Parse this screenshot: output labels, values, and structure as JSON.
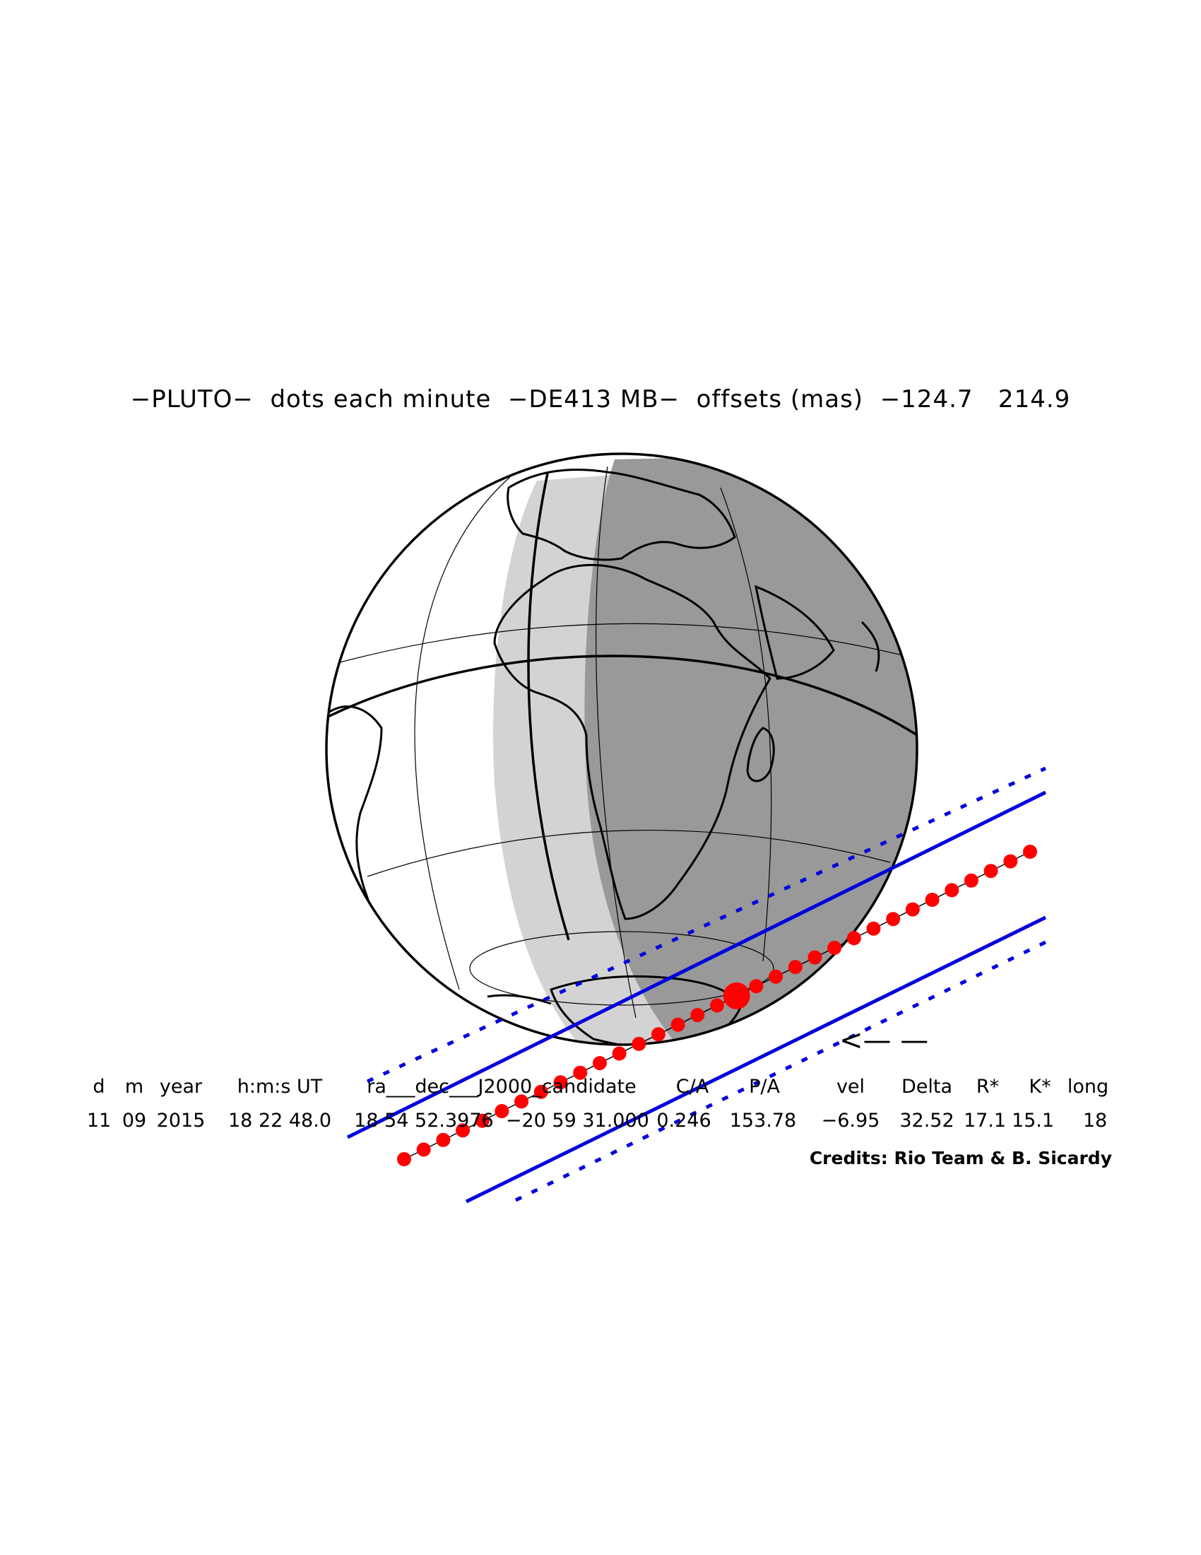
{
  "title": "−PLUTO−  dots each minute  −DE413 MB−  offsets (mas)  −124.7   214.9",
  "table": {
    "headers": [
      "d",
      "m",
      "year",
      "h:m:s UT",
      "ra___dec___J2000_candidate",
      "C/A",
      "P/A",
      "vel",
      "Delta",
      "R*",
      "K*",
      "long"
    ],
    "values": [
      "11",
      "09",
      "2015",
      "18 22 48.0",
      "18 54 52.3976  −20 59 31.000",
      "0.246",
      "153.78",
      "−6.95",
      "32.52",
      "17.1",
      "15.1",
      "18"
    ]
  },
  "credits": "Credits: Rio Team & B. Sicardy",
  "arrow": "<— —",
  "colors": {
    "shadow_path": "#0000dd",
    "dots": "#ff0000",
    "night": "#999999",
    "twilight": "#d3d3d3"
  },
  "map_data": {
    "body": "Pluto",
    "ephemeris": "DE413",
    "dot_interval": "1 minute",
    "offsets_mas": [
      -124.7,
      214.9
    ],
    "central_line_dots": 33,
    "closest_approach_time": "18:22:48.0 UT"
  }
}
